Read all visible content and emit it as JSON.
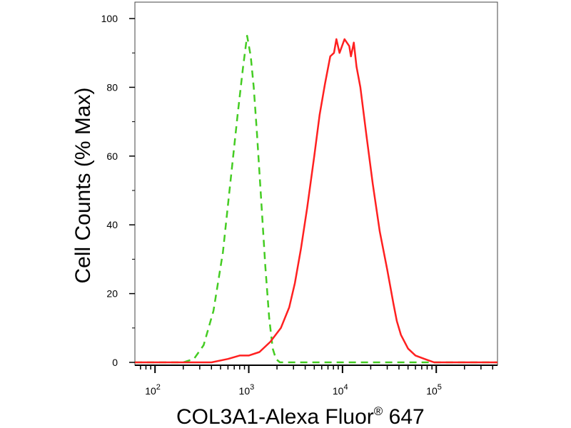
{
  "chart_data": {
    "type": "line",
    "title": "",
    "xlabel": "COL3A1-Alexa Fluor",
    "xlabel_sup": "®",
    "xlabel_suffix": " 647",
    "ylabel": "Cell Counts (% Max)",
    "x_scale": "log",
    "xlim": [
      61,
      450000
    ],
    "ylim": [
      0,
      100
    ],
    "x_ticks": [
      {
        "value": 100,
        "base": "10",
        "exp": "2"
      },
      {
        "value": 1000,
        "base": "10",
        "exp": "3"
      },
      {
        "value": 10000,
        "base": "10",
        "exp": "4"
      },
      {
        "value": 100000,
        "base": "10",
        "exp": "5"
      }
    ],
    "y_ticks": [
      0,
      20,
      40,
      60,
      80,
      100
    ],
    "grid": false,
    "legend": "none",
    "series": [
      {
        "color": "#44cc22",
        "dash": "dashed",
        "x": [
          61,
          200,
          260,
          330,
          420,
          530,
          640,
          760,
          870,
          960,
          1050,
          1130,
          1220,
          1350,
          1500,
          1650,
          1800,
          1950,
          2150,
          2600,
          450000
        ],
        "y": [
          0,
          0,
          1,
          5,
          15,
          32,
          53,
          72,
          86,
          95,
          89,
          80,
          67,
          48,
          28,
          13,
          4,
          1,
          0,
          0,
          0
        ]
      },
      {
        "color": "#ff2020",
        "dash": "solid",
        "x": [
          61,
          400,
          600,
          800,
          1000,
          1300,
          1700,
          2200,
          2700,
          3100,
          3600,
          4200,
          5000,
          5700,
          6500,
          7400,
          8100,
          8600,
          9300,
          10500,
          11800,
          12300,
          13200,
          14100,
          15500,
          18000,
          21000,
          25000,
          30000,
          35000,
          38000,
          42000,
          50000,
          60000,
          75000,
          95000,
          130000,
          450000
        ],
        "y": [
          0,
          0,
          1,
          2,
          2,
          3,
          6,
          10,
          16,
          23,
          33,
          45,
          60,
          72,
          81,
          89,
          90,
          94,
          90,
          94,
          92,
          89,
          93,
          86,
          80,
          66,
          52,
          38,
          27,
          17,
          12,
          8,
          4,
          2,
          1,
          0,
          0,
          0
        ]
      }
    ]
  }
}
